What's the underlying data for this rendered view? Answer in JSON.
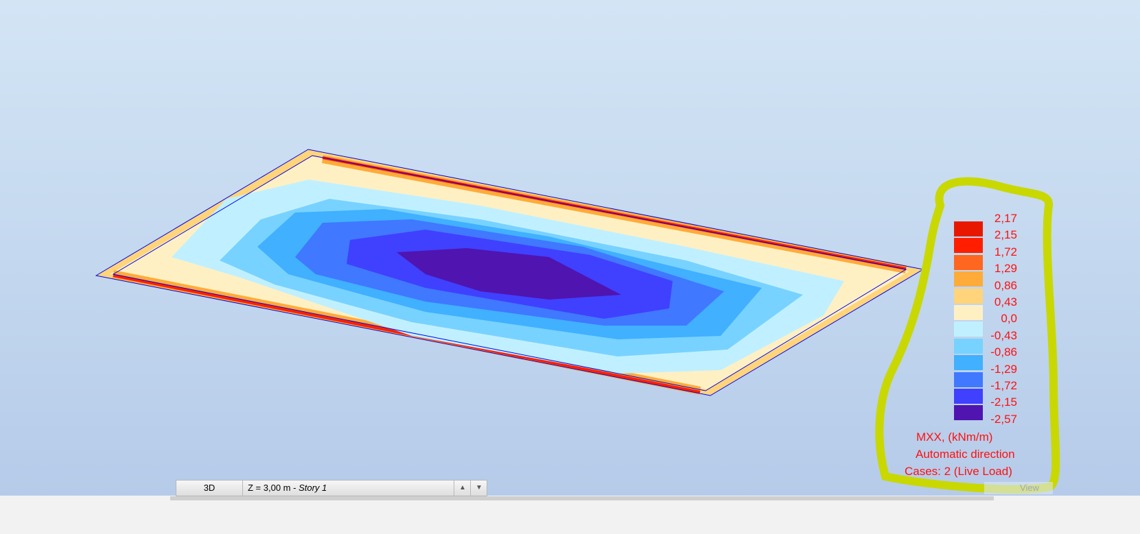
{
  "legend": {
    "values": [
      "2,17",
      "2,15",
      "1,72",
      "1,29",
      "0,86",
      "0,43",
      "0,0",
      "-0,43",
      "-0,86",
      "-1,29",
      "-1,72",
      "-2,15",
      "-2,57"
    ],
    "colors": [
      "#e81800",
      "#ff1f00",
      "#ff661f",
      "#ffab3a",
      "#ffd47a",
      "#fff0c4",
      "#c0f0ff",
      "#78d2ff",
      "#40b0ff",
      "#4078ff",
      "#4040ff",
      "#5014b0"
    ],
    "quantity": "MXX, (kNm/m)",
    "direction": "Automatic direction",
    "cases": "Cases: 2 (Live Load)"
  },
  "bottombar": {
    "view_tab": "3D",
    "level_prefix": "Z = 3,00 m - ",
    "level_story": "Story 1"
  },
  "view_label": "View",
  "highlight_color": "#c8d800"
}
